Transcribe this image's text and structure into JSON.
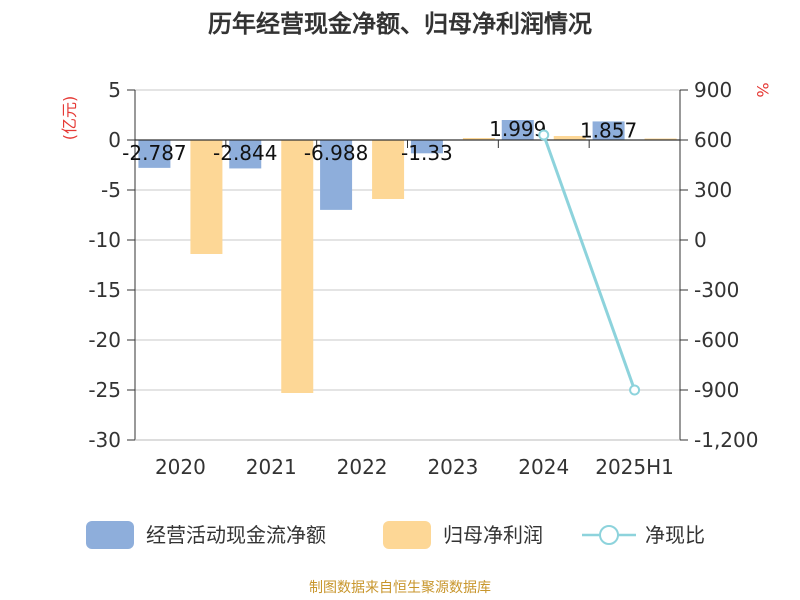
{
  "chart_data": {
    "type": "bar",
    "title": "历年经营现金净额、归母净利润情况",
    "categories": [
      "2020",
      "2021",
      "2022",
      "2023",
      "2024",
      "2025H1"
    ],
    "y_left": {
      "unit": "(亿元)",
      "min": -30,
      "max": 5,
      "ticks": [
        5,
        0,
        -5,
        -10,
        -15,
        -20,
        -25,
        -30
      ]
    },
    "y_right": {
      "unit": "%",
      "min": -1200,
      "max": 900,
      "ticks": [
        900,
        600,
        300,
        0,
        -300,
        -600,
        -900,
        -1200
      ],
      "tick_labels": [
        "900",
        "600",
        "300",
        "0",
        "-300",
        "-600",
        "-900",
        "-1,200"
      ]
    },
    "grid": true,
    "legend_position": "bottom",
    "series": [
      {
        "name": "经营活动现金流净额",
        "type": "bar",
        "axis": "left",
        "color": "#8eaedb",
        "values": [
          -2.787,
          -2.844,
          -6.988,
          -1.33,
          1.999,
          1.857
        ],
        "labels": [
          "-2.787",
          "-2.844",
          "-6.988",
          "-1.33",
          "1.999",
          "1.857"
        ]
      },
      {
        "name": "归母净利润",
        "type": "bar",
        "axis": "left",
        "color": "#fdd796",
        "values": [
          -11.4,
          -25.3,
          -5.9,
          0.2,
          0.4,
          0.15
        ]
      },
      {
        "name": "净现比",
        "type": "line",
        "axis": "right",
        "color": "#8dd3dc",
        "values": [
          null,
          null,
          null,
          null,
          630,
          -900
        ]
      }
    ]
  },
  "source_text": "制图数据来自恒生聚源数据库"
}
